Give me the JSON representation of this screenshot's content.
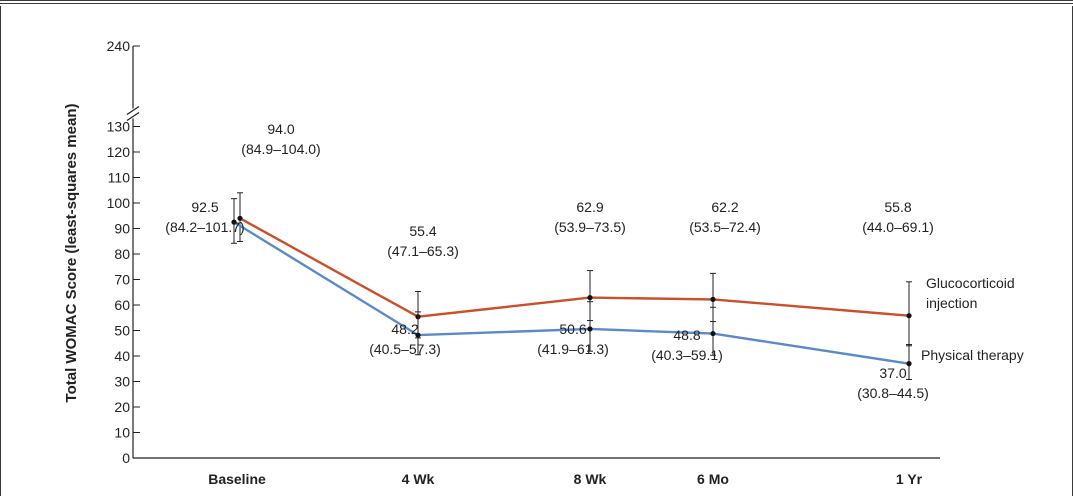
{
  "chart_data": {
    "type": "line",
    "ylabel": "Total WOMAC Score (least-squares mean)",
    "xlabel": "",
    "categories": [
      "Baseline",
      "4 Wk",
      "8 Wk",
      "6 Mo",
      "1 Yr"
    ],
    "ylim": [
      0,
      130
    ],
    "y_break": true,
    "y_ticks": [
      0,
      10,
      20,
      30,
      40,
      50,
      60,
      70,
      80,
      90,
      100,
      110,
      120,
      130
    ],
    "y_break_ticks": [
      240
    ],
    "grid": false,
    "series": [
      {
        "name": "Glucocorticoid injection",
        "color": "#c8502a",
        "values": [
          94.0,
          55.4,
          62.9,
          62.2,
          55.8
        ],
        "ci_low": [
          84.9,
          47.1,
          53.9,
          53.5,
          44.0
        ],
        "ci_high": [
          104.0,
          65.3,
          73.5,
          72.4,
          69.1
        ],
        "labels": [
          "94.0",
          "55.4",
          "62.9",
          "62.2",
          "55.8"
        ],
        "ci_labels": [
          "(84.9–104.0)",
          "(47.1–65.3)",
          "(53.9–73.5)",
          "(53.5–72.4)",
          "(44.0–69.1)"
        ]
      },
      {
        "name": "Physical therapy",
        "color": "#5b8ac9",
        "values": [
          92.5,
          48.2,
          50.6,
          48.8,
          37.0
        ],
        "ci_low": [
          84.2,
          40.5,
          41.9,
          40.3,
          30.8
        ],
        "ci_high": [
          101.7,
          57.3,
          61.3,
          59.1,
          44.5
        ],
        "labels": [
          "92.5",
          "48.2",
          "50.6",
          "48.8",
          "37.0"
        ],
        "ci_labels": [
          "(84.2–101.7)",
          "(40.5–57.3)",
          "(41.9–61.3)",
          "(40.3–59.1)",
          "(30.8–44.5)"
        ]
      }
    ],
    "legend": [
      "Glucocorticoid",
      "injection",
      "Physical therapy"
    ]
  }
}
